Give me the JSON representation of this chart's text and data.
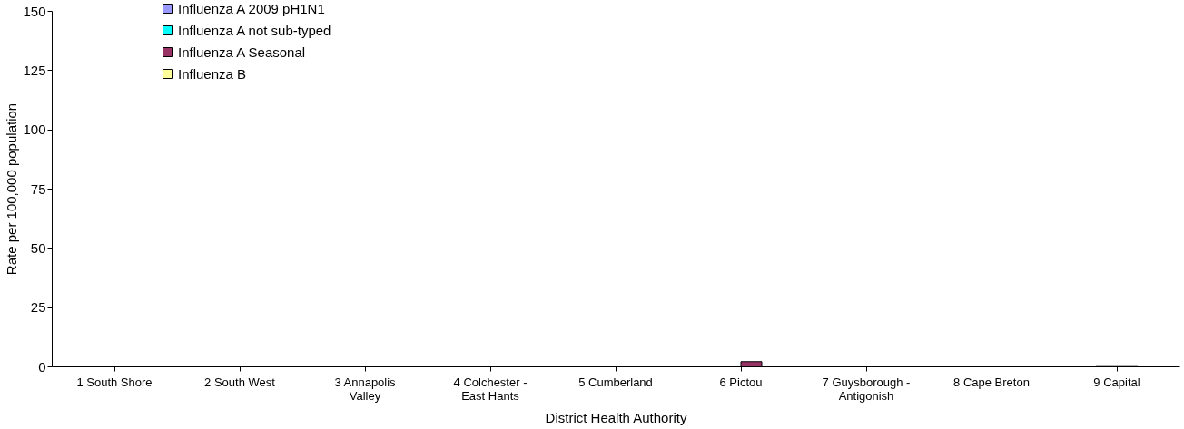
{
  "chart_data": {
    "type": "bar",
    "xlabel": "District Health Authority",
    "ylabel": "Rate per 100,000 population",
    "categories": [
      "1 South Shore",
      "2 South West",
      "3 Annapolis Valley",
      "4 Colchester - East Hants",
      "5 Cumberland",
      "6 Pictou",
      "7 Guysborough - Antigonish",
      "8 Cape Breton",
      "9 Capital"
    ],
    "series": [
      {
        "name": "Influenza A 2009 pH1N1",
        "color": "#9999ff",
        "values": [
          0,
          0,
          0,
          0,
          0,
          0,
          0,
          0,
          0
        ]
      },
      {
        "name": "Influenza A not sub-typed",
        "color": "#00ffff",
        "values": [
          0,
          0,
          0,
          0,
          0,
          0,
          0,
          0,
          0.3
        ]
      },
      {
        "name": "Influenza A Seasonal",
        "color": "#993366",
        "values": [
          0,
          0,
          0,
          0,
          0,
          2,
          0,
          0,
          0.3
        ]
      },
      {
        "name": "Influenza B",
        "color": "#ffff99",
        "values": [
          0,
          0,
          0,
          0,
          0,
          0,
          0,
          0,
          0
        ]
      }
    ],
    "ylim": [
      0,
      150
    ],
    "yticks": [
      0,
      25,
      50,
      75,
      100,
      125,
      150
    ],
    "grid": false,
    "legend": "top left"
  }
}
